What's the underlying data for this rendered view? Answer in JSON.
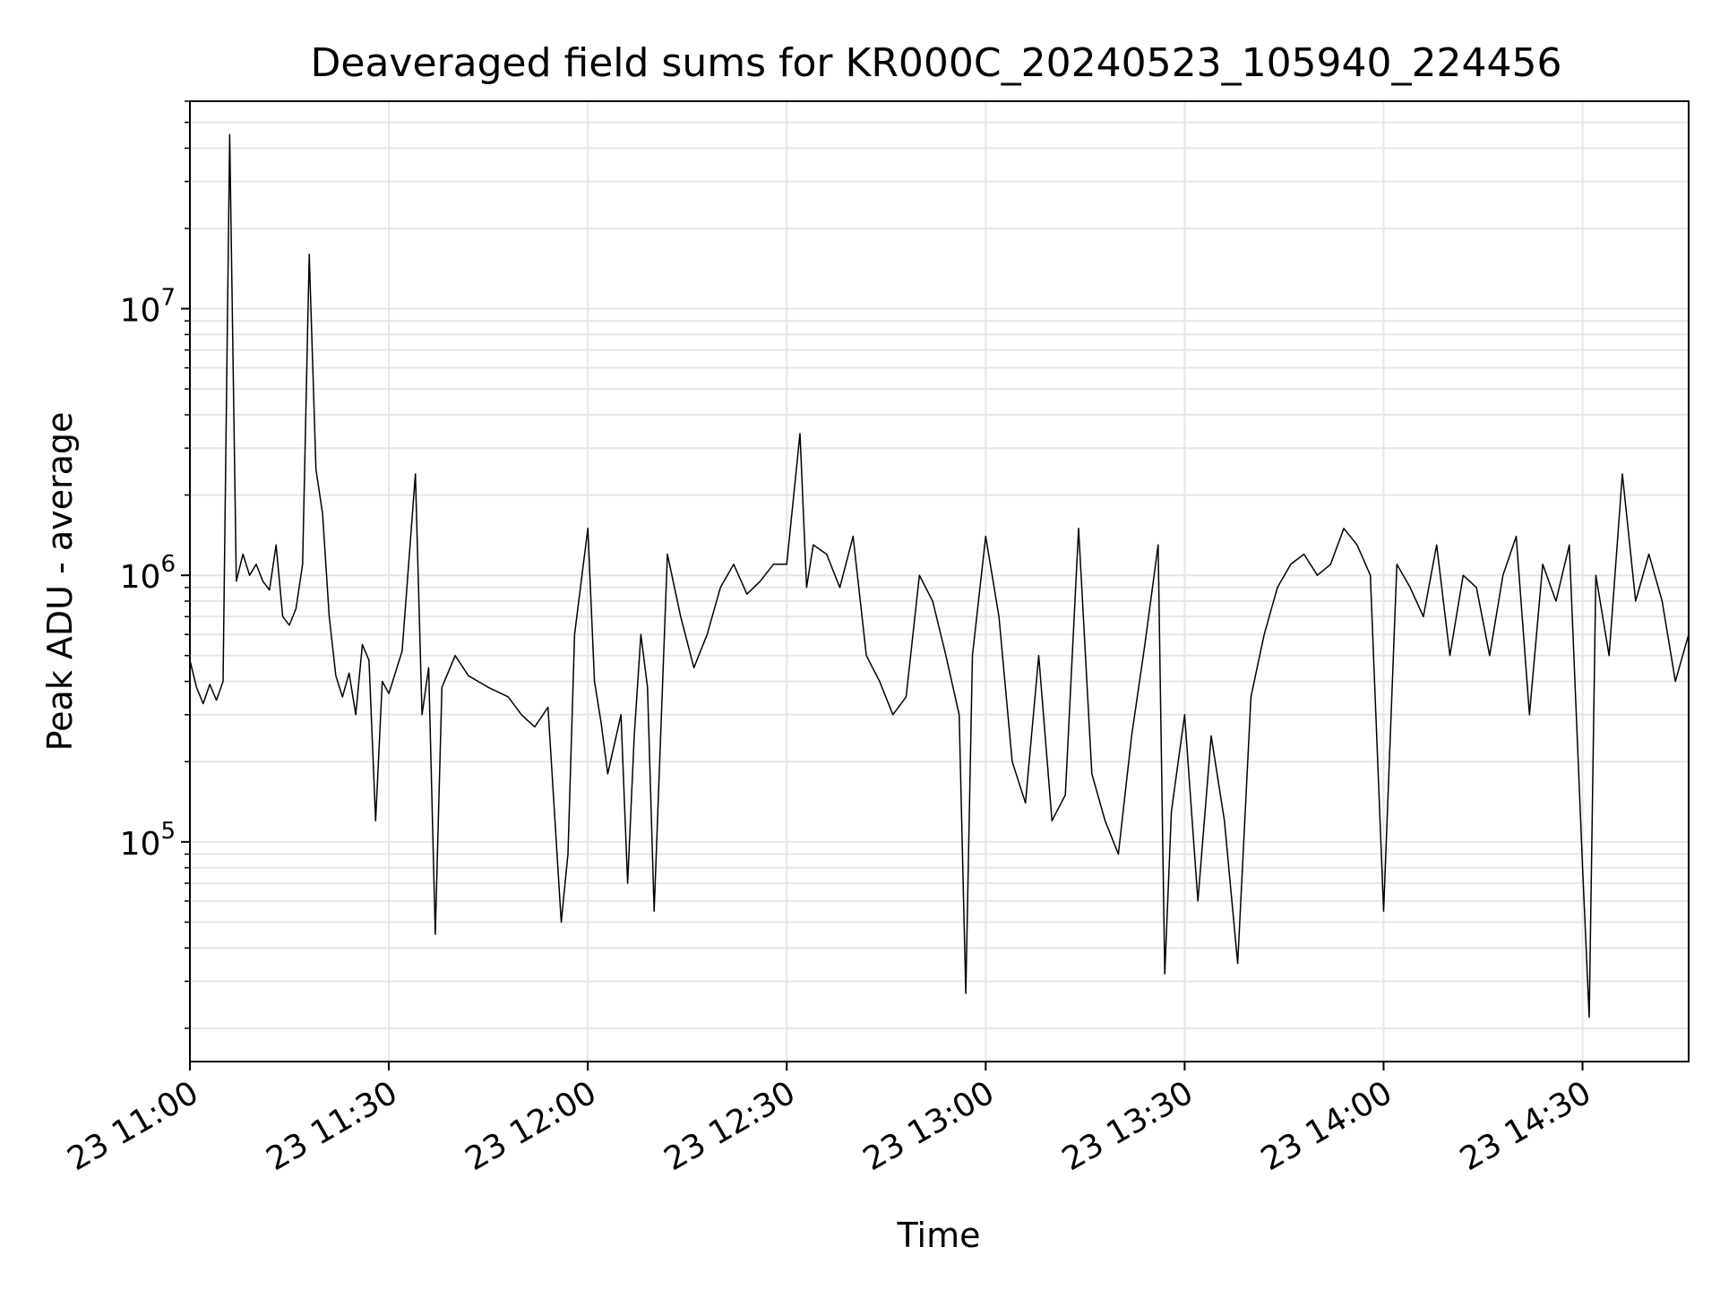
{
  "chart_data": {
    "type": "line",
    "title": "Deaveraged field sums for KR000C_20240523_105940_224456",
    "xlabel": "Time",
    "ylabel": "Peak ADU - average",
    "y_scale": "log",
    "ylim": [
      15000,
      60000000
    ],
    "xlim": [
      "2024-05-23 11:00",
      "2024-05-23 14:46"
    ],
    "grid": true,
    "x_ticks": [
      {
        "x": "2024-05-23 11:00",
        "label": "23 11:00"
      },
      {
        "x": "2024-05-23 11:30",
        "label": "23 11:30"
      },
      {
        "x": "2024-05-23 12:00",
        "label": "23 12:00"
      },
      {
        "x": "2024-05-23 12:30",
        "label": "23 12:30"
      },
      {
        "x": "2024-05-23 13:00",
        "label": "23 13:00"
      },
      {
        "x": "2024-05-23 13:30",
        "label": "23 13:30"
      },
      {
        "x": "2024-05-23 14:00",
        "label": "23 14:00"
      },
      {
        "x": "2024-05-23 14:30",
        "label": "23 14:30"
      }
    ],
    "y_ticks": [
      {
        "value": 100000,
        "base": "10",
        "exp": "5"
      },
      {
        "value": 1000000,
        "base": "10",
        "exp": "6"
      },
      {
        "value": 10000000,
        "base": "10",
        "exp": "7"
      }
    ],
    "line_color": "#000000",
    "grid_color": "#e6e6e6",
    "series": [
      {
        "x": [
          "2024-05-23 11:00",
          "2024-05-23 11:01",
          "2024-05-23 11:02",
          "2024-05-23 11:03",
          "2024-05-23 11:04",
          "2024-05-23 11:05",
          "2024-05-23 11:06",
          "2024-05-23 11:07",
          "2024-05-23 11:08",
          "2024-05-23 11:09",
          "2024-05-23 11:10",
          "2024-05-23 11:11",
          "2024-05-23 11:12",
          "2024-05-23 11:13",
          "2024-05-23 11:14",
          "2024-05-23 11:15",
          "2024-05-23 11:16",
          "2024-05-23 11:17",
          "2024-05-23 11:18",
          "2024-05-23 11:19",
          "2024-05-23 11:20",
          "2024-05-23 11:21",
          "2024-05-23 11:22",
          "2024-05-23 11:23",
          "2024-05-23 11:24",
          "2024-05-23 11:25",
          "2024-05-23 11:26",
          "2024-05-23 11:27",
          "2024-05-23 11:28",
          "2024-05-23 11:29",
          "2024-05-23 11:30",
          "2024-05-23 11:32",
          "2024-05-23 11:34",
          "2024-05-23 11:35",
          "2024-05-23 11:36",
          "2024-05-23 11:37",
          "2024-05-23 11:38",
          "2024-05-23 11:40",
          "2024-05-23 11:42",
          "2024-05-23 11:45",
          "2024-05-23 11:48",
          "2024-05-23 11:50",
          "2024-05-23 11:52",
          "2024-05-23 11:54",
          "2024-05-23 11:56",
          "2024-05-23 11:57",
          "2024-05-23 11:58",
          "2024-05-23 12:00",
          "2024-05-23 12:01",
          "2024-05-23 12:02",
          "2024-05-23 12:03",
          "2024-05-23 12:05",
          "2024-05-23 12:06",
          "2024-05-23 12:07",
          "2024-05-23 12:08",
          "2024-05-23 12:09",
          "2024-05-23 12:10",
          "2024-05-23 12:12",
          "2024-05-23 12:14",
          "2024-05-23 12:16",
          "2024-05-23 12:18",
          "2024-05-23 12:20",
          "2024-05-23 12:22",
          "2024-05-23 12:24",
          "2024-05-23 12:26",
          "2024-05-23 12:28",
          "2024-05-23 12:30",
          "2024-05-23 12:32",
          "2024-05-23 12:33",
          "2024-05-23 12:34",
          "2024-05-23 12:36",
          "2024-05-23 12:38",
          "2024-05-23 12:40",
          "2024-05-23 12:42",
          "2024-05-23 12:44",
          "2024-05-23 12:46",
          "2024-05-23 12:48",
          "2024-05-23 12:50",
          "2024-05-23 12:52",
          "2024-05-23 12:54",
          "2024-05-23 12:56",
          "2024-05-23 12:57",
          "2024-05-23 12:58",
          "2024-05-23 13:00",
          "2024-05-23 13:02",
          "2024-05-23 13:04",
          "2024-05-23 13:06",
          "2024-05-23 13:08",
          "2024-05-23 13:10",
          "2024-05-23 13:12",
          "2024-05-23 13:14",
          "2024-05-23 13:16",
          "2024-05-23 13:18",
          "2024-05-23 13:20",
          "2024-05-23 13:22",
          "2024-05-23 13:24",
          "2024-05-23 13:26",
          "2024-05-23 13:27",
          "2024-05-23 13:28",
          "2024-05-23 13:30",
          "2024-05-23 13:32",
          "2024-05-23 13:34",
          "2024-05-23 13:36",
          "2024-05-23 13:38",
          "2024-05-23 13:40",
          "2024-05-23 13:42",
          "2024-05-23 13:44",
          "2024-05-23 13:46",
          "2024-05-23 13:48",
          "2024-05-23 13:50",
          "2024-05-23 13:52",
          "2024-05-23 13:54",
          "2024-05-23 13:56",
          "2024-05-23 13:58",
          "2024-05-23 14:00",
          "2024-05-23 14:02",
          "2024-05-23 14:04",
          "2024-05-23 14:06",
          "2024-05-23 14:08",
          "2024-05-23 14:10",
          "2024-05-23 14:12",
          "2024-05-23 14:14",
          "2024-05-23 14:16",
          "2024-05-23 14:18",
          "2024-05-23 14:20",
          "2024-05-23 14:22",
          "2024-05-23 14:24",
          "2024-05-23 14:26",
          "2024-05-23 14:28",
          "2024-05-23 14:30",
          "2024-05-23 14:31",
          "2024-05-23 14:32",
          "2024-05-23 14:34",
          "2024-05-23 14:36",
          "2024-05-23 14:38",
          "2024-05-23 14:40",
          "2024-05-23 14:42",
          "2024-05-23 14:44",
          "2024-05-23 14:46"
        ],
        "values": [
          480000,
          380000,
          330000,
          390000,
          340000,
          400000,
          45000000,
          950000,
          1200000,
          1000000,
          1100000,
          950000,
          880000,
          1300000,
          700000,
          650000,
          750000,
          1100000,
          16000000,
          2500000,
          1700000,
          700000,
          420000,
          350000,
          430000,
          300000,
          550000,
          480000,
          120000,
          400000,
          360000,
          520000,
          2400000,
          300000,
          450000,
          45000,
          380000,
          500000,
          420000,
          380000,
          350000,
          300000,
          270000,
          320000,
          50000,
          90000,
          600000,
          1500000,
          400000,
          280000,
          180000,
          300000,
          70000,
          250000,
          600000,
          380000,
          55000,
          1200000,
          700000,
          450000,
          600000,
          900000,
          1100000,
          850000,
          950000,
          1100000,
          1100000,
          3400000,
          900000,
          1300000,
          1200000,
          900000,
          1400000,
          500000,
          400000,
          300000,
          350000,
          1000000,
          800000,
          500000,
          300000,
          27000,
          500000,
          1400000,
          700000,
          200000,
          140000,
          500000,
          120000,
          150000,
          1500000,
          180000,
          120000,
          90000,
          250000,
          550000,
          1300000,
          32000,
          130000,
          300000,
          60000,
          250000,
          120000,
          35000,
          350000,
          600000,
          900000,
          1100000,
          1200000,
          1000000,
          1100000,
          1500000,
          1300000,
          1000000,
          55000,
          1100000,
          900000,
          700000,
          1300000,
          500000,
          1000000,
          900000,
          500000,
          1000000,
          1400000,
          300000,
          1100000,
          800000,
          1300000,
          80000,
          22000,
          1000000,
          500000,
          2400000,
          800000,
          1200000,
          800000,
          400000,
          600000
        ]
      }
    ]
  }
}
